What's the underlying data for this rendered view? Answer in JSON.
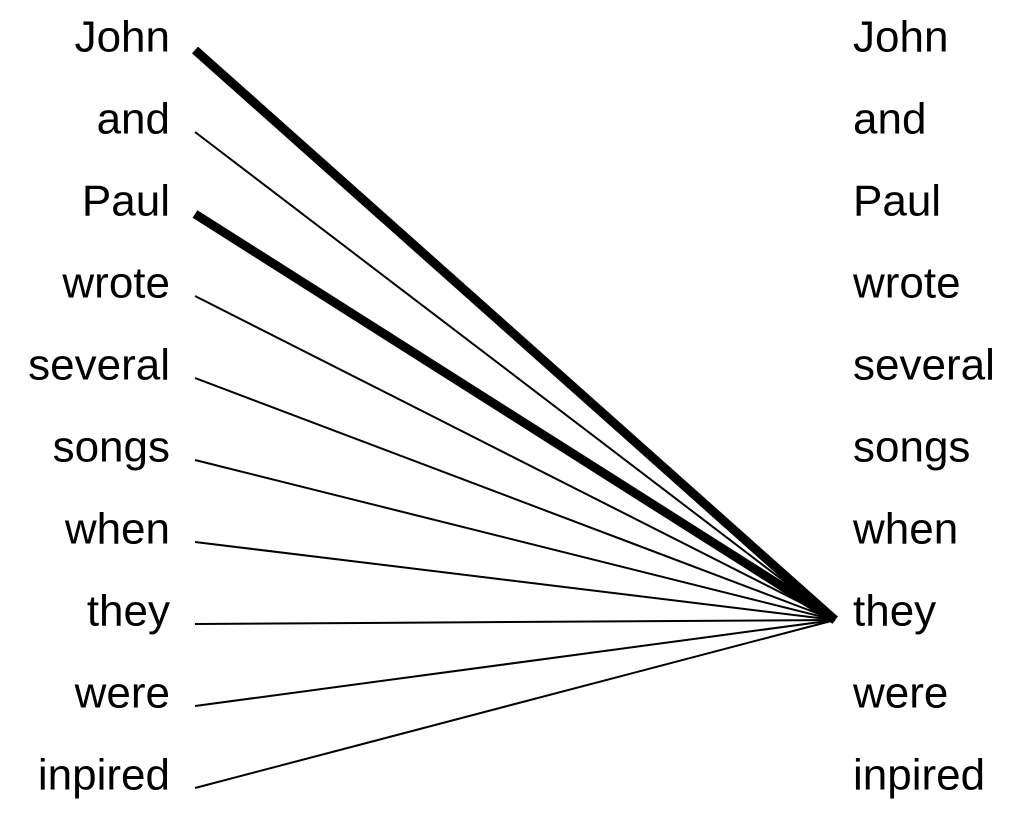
{
  "diagram": {
    "left_words": [
      "John",
      "and",
      "Paul",
      "wrote",
      "several",
      "songs",
      "when",
      "they",
      "were",
      "inpired"
    ],
    "right_words": [
      "John",
      "and",
      "Paul",
      "wrote",
      "several",
      "songs",
      "when",
      "they",
      "were",
      "inpired"
    ],
    "focus_word_index": 7,
    "connections": [
      {
        "from": 0,
        "to": 7,
        "weight": "strong"
      },
      {
        "from": 1,
        "to": 7,
        "weight": "weak"
      },
      {
        "from": 2,
        "to": 7,
        "weight": "strong"
      },
      {
        "from": 3,
        "to": 7,
        "weight": "weak"
      },
      {
        "from": 4,
        "to": 7,
        "weight": "weak"
      },
      {
        "from": 5,
        "to": 7,
        "weight": "weak"
      },
      {
        "from": 6,
        "to": 7,
        "weight": "weak"
      },
      {
        "from": 7,
        "to": 7,
        "weight": "weak"
      },
      {
        "from": 8,
        "to": 7,
        "weight": "weak"
      },
      {
        "from": 9,
        "to": 7,
        "weight": "weak"
      }
    ],
    "line_color": "#000000",
    "text_color": "#000000"
  }
}
